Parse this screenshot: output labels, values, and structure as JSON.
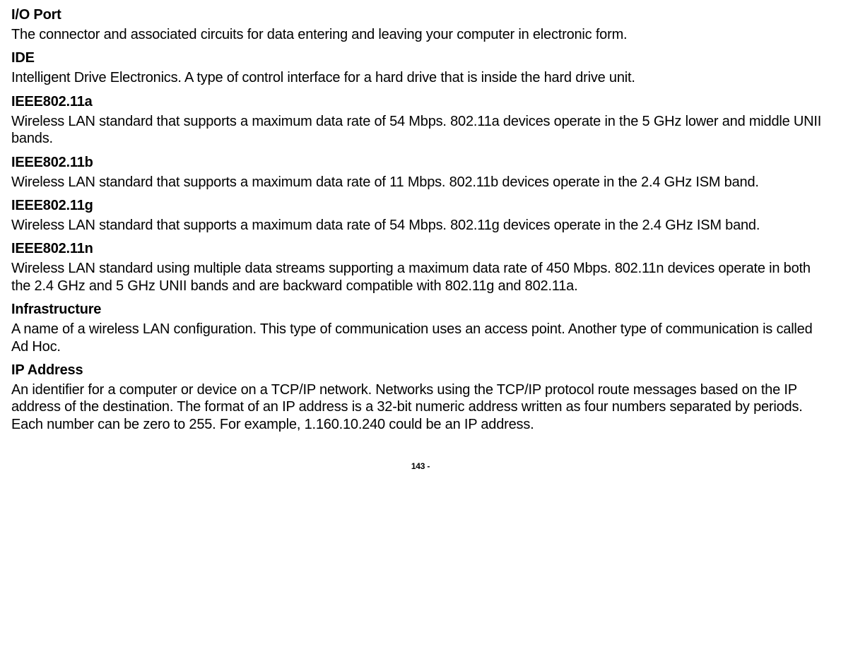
{
  "glossary": [
    {
      "term": "I/O Port",
      "definition": "The connector and associated circuits for data entering and leaving your computer in electronic form."
    },
    {
      "term": "IDE",
      "definition": "Intelligent Drive Electronics. A type of control interface for a hard drive that is inside the hard drive unit."
    },
    {
      "term": "IEEE802.11a",
      "definition": "Wireless LAN standard that supports a maximum data rate of 54 Mbps. 802.11a devices operate in the 5 GHz lower and middle UNII bands."
    },
    {
      "term": "IEEE802.11b",
      "definition": "Wireless LAN standard that supports a maximum data rate of 11 Mbps. 802.11b devices operate in the 2.4 GHz ISM band."
    },
    {
      "term": "IEEE802.11g",
      "definition": "Wireless LAN standard that supports a maximum data rate of 54 Mbps. 802.11g devices operate in the 2.4 GHz ISM band."
    },
    {
      "term": "IEEE802.11n",
      "definition": "Wireless LAN standard using multiple data streams supporting a maximum data rate of 450 Mbps. 802.11n devices operate in both the 2.4 GHz and 5 GHz UNII bands and are backward compatible with 802.11g and 802.11a."
    },
    {
      "term": "Infrastructure",
      "definition": "A name of a wireless LAN configuration. This type of communication uses an access point. Another type of communication is called Ad Hoc."
    },
    {
      "term": "IP Address",
      "definition": "An identifier for a computer or device on a TCP/IP network. Networks using the TCP/IP protocol route messages based on the IP address of the destination. The format of an IP address is a 32-bit numeric address written as four numbers separated by periods. Each number can be zero to 255. For example, 1.160.10.240 could be an IP address."
    }
  ],
  "page_number": "143 -"
}
